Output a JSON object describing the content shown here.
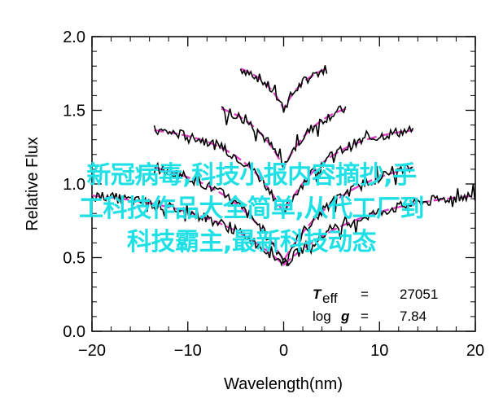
{
  "chart_data": {
    "type": "line",
    "title": "",
    "xlabel": "Wavelength(nm)",
    "ylabel": "Relative Flux",
    "xlim": [
      -20,
      20
    ],
    "ylim": [
      0.0,
      2.0
    ],
    "x_ticks": [
      "-20",
      "-10",
      "0",
      "10",
      "20"
    ],
    "x_tick_values": [
      -20,
      -10,
      0,
      10,
      20
    ],
    "y_ticks": [
      "0.0",
      "0.5",
      "1.0",
      "1.5",
      "2.0"
    ],
    "y_tick_values": [
      0.0,
      0.5,
      1.0,
      1.5,
      2.0
    ],
    "grid": false,
    "annotation": {
      "teff_symbol": "T",
      "teff_sub": "eff",
      "teff_eq": "=",
      "teff_value": "27051",
      "logg_label": "log",
      "logg_symbol": "g",
      "logg_eq": "=",
      "logg_value": "7.84"
    },
    "series": [
      {
        "offset": 1.84,
        "depth": 0.33,
        "width": 2.6,
        "xmin": -4.5,
        "xmax": 4.5
      },
      {
        "offset": 1.59,
        "depth": 0.48,
        "width": 3.6,
        "xmin": -6.5,
        "xmax": 6.5
      },
      {
        "offset": 1.4,
        "depth": 0.6,
        "width": 4.8,
        "xmin": -13.5,
        "xmax": 13.5
      },
      {
        "offset": 1.2,
        "depth": 0.72,
        "width": 6.5,
        "xmin": -13.5,
        "xmax": 13.5
      },
      {
        "offset": 0.97,
        "depth": 0.52,
        "width": 8.5,
        "xmin": -20,
        "xmax": 20
      }
    ],
    "colors": {
      "observed": "#000000",
      "model": "#e040c8"
    }
  },
  "overlay": {
    "lines": [
      "新冠病毒,科技小报内容摘抄,手",
      "工科技作品大全简单,从代工厂到",
      "科技霸主,最新科技动态"
    ],
    "color": "#20e0e6"
  }
}
